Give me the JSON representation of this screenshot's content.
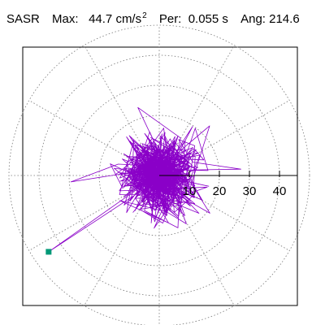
{
  "header": {
    "station": "SASR",
    "max_label": "Max:",
    "max_value": "44.7",
    "max_unit": "cm/s",
    "max_unit_exp": "2",
    "period_label": "Per:",
    "period_value": "0.055 s",
    "angle_label": "Ang:",
    "angle_value": "214.6"
  },
  "chart_data": {
    "type": "polar-trace",
    "title": "",
    "radial_unit": "cm/s²",
    "radial_ticks": [
      10,
      20,
      30,
      40
    ],
    "rings": [
      10,
      20,
      30,
      40,
      50
    ],
    "rlim": [
      0,
      50
    ],
    "grid": true,
    "peak": {
      "magnitude": 44.7,
      "angle_deg": 214.6
    },
    "trace_color": "#8a00c8",
    "peak_marker_color": "#009977"
  }
}
